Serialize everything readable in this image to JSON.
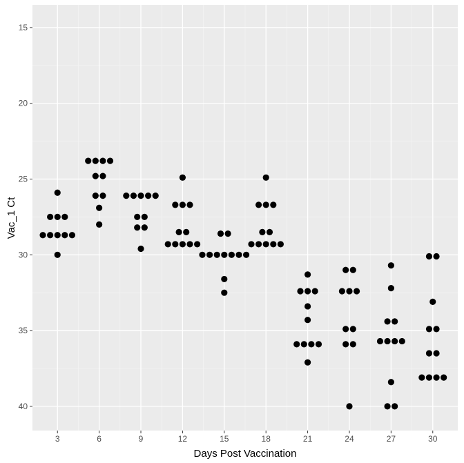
{
  "chart_data": {
    "type": "scatter",
    "subtype": "dotplot",
    "title": "",
    "xlabel": "Days Post Vaccination",
    "ylabel": "Vac_1 Ct",
    "y_reversed": true,
    "xlim": [
      1.2,
      31.8
    ],
    "ylim": [
      13.5,
      41.6
    ],
    "x_ticks": [
      3,
      6,
      9,
      12,
      15,
      18,
      21,
      24,
      27,
      30
    ],
    "y_ticks": [
      15,
      20,
      25,
      30,
      35,
      40
    ],
    "grid": true,
    "legend": "none",
    "colors": {
      "panel": "#ebebeb",
      "grid_major": "#ffffff",
      "grid_minor": "#f4f4f4",
      "point": "#000000",
      "tick_text": "#4d4d4d",
      "tick_mark": "#333333"
    },
    "series": [
      {
        "x": 3,
        "y": [
          25.9,
          27.5,
          27.5,
          27.5,
          28.7,
          28.7,
          28.7,
          28.7,
          28.7,
          30.0
        ]
      },
      {
        "x": 6,
        "y": [
          23.8,
          23.8,
          23.8,
          23.8,
          24.8,
          24.8,
          26.1,
          26.1,
          26.9,
          28.0
        ]
      },
      {
        "x": 9,
        "y": [
          26.1,
          26.1,
          26.1,
          26.1,
          26.1,
          27.5,
          27.5,
          28.2,
          28.2,
          29.6
        ]
      },
      {
        "x": 12,
        "y": [
          24.9,
          26.7,
          26.7,
          26.7,
          28.5,
          28.5,
          29.3,
          29.3,
          29.3,
          29.3,
          29.3
        ]
      },
      {
        "x": 15,
        "y": [
          28.6,
          28.6,
          30.0,
          30.0,
          30.0,
          30.0,
          30.0,
          30.0,
          30.0,
          31.6,
          32.5
        ]
      },
      {
        "x": 18,
        "y": [
          24.9,
          26.7,
          26.7,
          26.7,
          28.5,
          28.5,
          29.3,
          29.3,
          29.3,
          29.3,
          29.3
        ]
      },
      {
        "x": 21,
        "y": [
          31.3,
          32.4,
          32.4,
          32.4,
          33.4,
          34.3,
          35.9,
          35.9,
          35.9,
          35.9,
          37.1
        ]
      },
      {
        "x": 24,
        "y": [
          31.0,
          31.0,
          32.4,
          32.4,
          32.4,
          34.9,
          34.9,
          35.9,
          35.9,
          40.0
        ]
      },
      {
        "x": 27,
        "y": [
          30.7,
          32.2,
          34.4,
          34.4,
          35.7,
          35.7,
          35.7,
          35.7,
          38.4,
          40.0,
          40.0
        ]
      },
      {
        "x": 30,
        "y": [
          30.1,
          30.1,
          33.1,
          34.9,
          34.9,
          36.5,
          36.5,
          38.1,
          38.1,
          38.1,
          38.1
        ]
      }
    ]
  }
}
